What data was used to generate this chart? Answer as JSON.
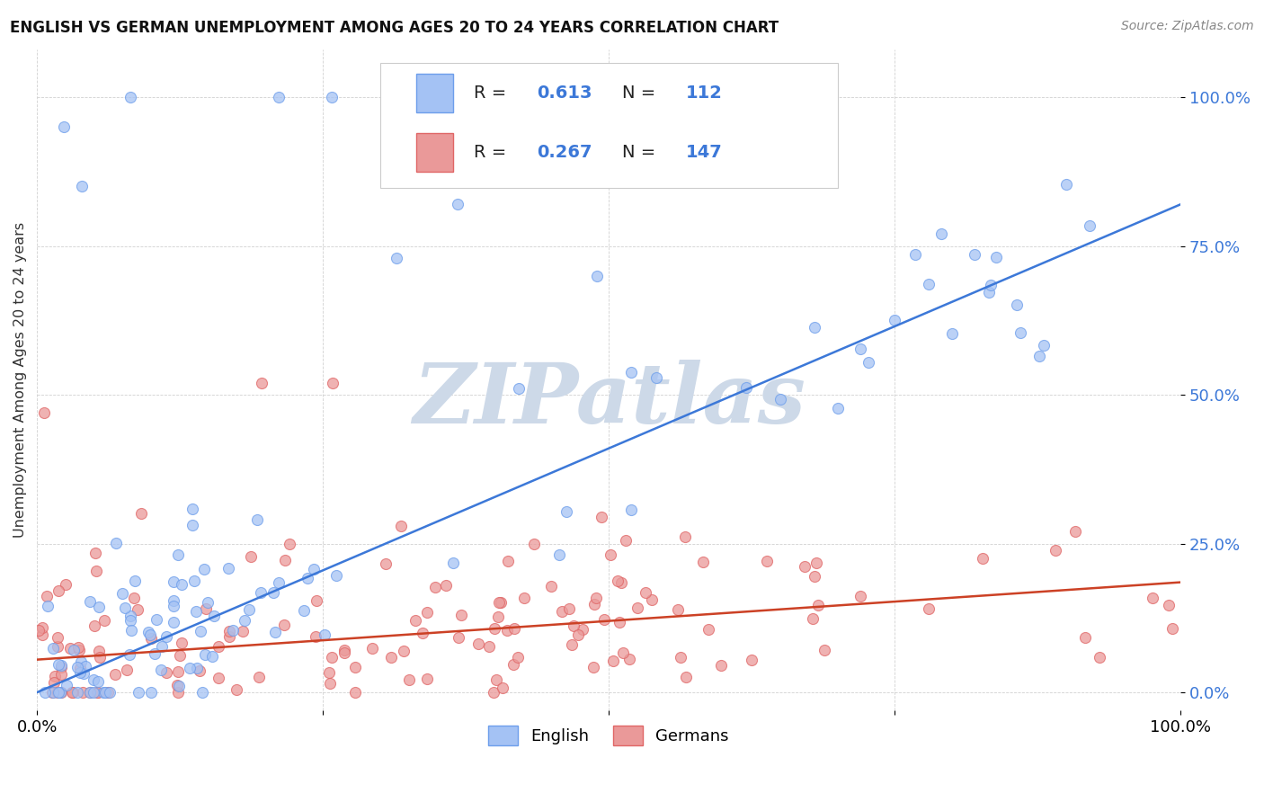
{
  "title": "ENGLISH VS GERMAN UNEMPLOYMENT AMONG AGES 20 TO 24 YEARS CORRELATION CHART",
  "source": "Source: ZipAtlas.com",
  "ylabel": "Unemployment Among Ages 20 to 24 years",
  "xlim": [
    0,
    1
  ],
  "ylim": [
    -0.03,
    1.08
  ],
  "ytick_labels": [
    "0.0%",
    "25.0%",
    "50.0%",
    "75.0%",
    "100.0%"
  ],
  "ytick_vals": [
    0.0,
    0.25,
    0.5,
    0.75,
    1.0
  ],
  "english_R": "0.613",
  "english_N": "112",
  "german_R": "0.267",
  "german_N": "147",
  "english_color": "#a4c2f4",
  "german_color": "#ea9999",
  "english_edge_color": "#6d9eeb",
  "german_edge_color": "#e06666",
  "english_line_color": "#3c78d8",
  "german_line_color": "#cc4125",
  "r_n_text_color": "#3c78d8",
  "watermark_color": "#cdd9e8",
  "background_color": "#ffffff",
  "grid_color": "#cccccc",
  "english_line_x": [
    0.0,
    1.0
  ],
  "english_line_y": [
    0.0,
    0.82
  ],
  "german_line_x": [
    0.0,
    1.0
  ],
  "german_line_y": [
    0.055,
    0.185
  ]
}
